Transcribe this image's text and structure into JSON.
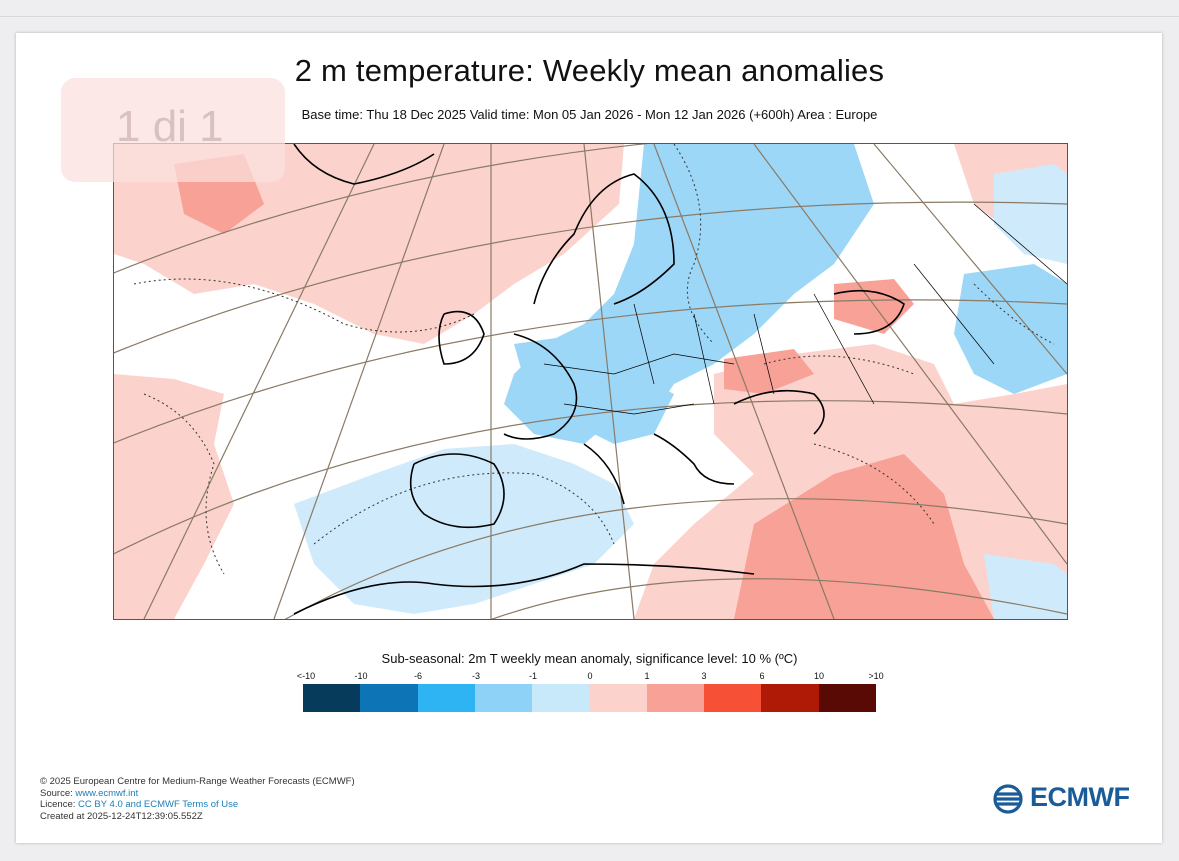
{
  "viewer": {
    "page_indicator": "1 di 1"
  },
  "chart": {
    "title": "2 m temperature: Weekly mean anomalies",
    "subtitle": "Base time: Thu 18 Dec 2025 Valid time: Mon 05 Jan 2026 - Mon 12 Jan 2026 (+600h) Area : Europe",
    "area": "Europe"
  },
  "colorbar": {
    "title": "Sub-seasonal: 2m T weekly mean anomaly, significance level: 10 % (ºC)",
    "labels": [
      "<-10",
      "-10",
      "-6",
      "-3",
      "-1",
      "0",
      "1",
      "3",
      "6",
      "10",
      ">10"
    ],
    "colors": [
      "#063b5c",
      "#0d75b5",
      "#2eb4f2",
      "#8ed3f7",
      "#c7e9f9",
      "#fcd3cc",
      "#f8a196",
      "#f65036",
      "#ae1a05",
      "#5a0a05"
    ]
  },
  "map_colors": {
    "strong_cold": "#9dd7f7",
    "light_cold": "#cfeafb",
    "light_warm": "#fcd3cc",
    "warm": "#f8a196",
    "coast": "#000000",
    "graticule": "#8a7a66"
  },
  "footer": {
    "copyright": "© 2025 European Centre for Medium-Range Weather Forecasts (ECMWF)",
    "source_label": "Source: ",
    "source_link": "www.ecmwf.int",
    "licence_label": "Licence: ",
    "licence_link": "CC BY 4.0 and ECMWF Terms of Use",
    "created": "Created at 2025-12-24T12:39:05.552Z"
  },
  "logo": {
    "text": "ECMWF"
  }
}
